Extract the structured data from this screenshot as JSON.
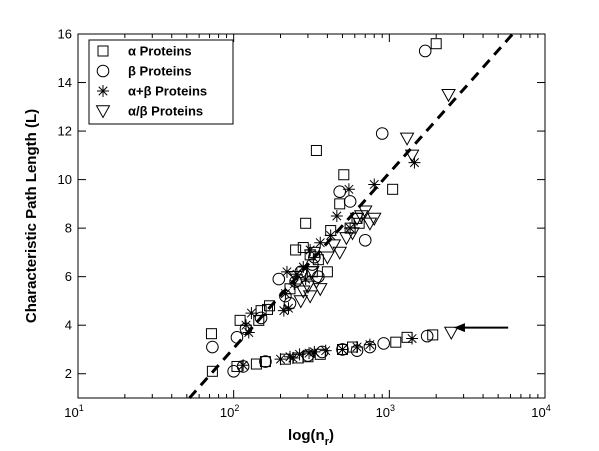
{
  "chart_data": {
    "type": "scatter",
    "title": "",
    "xlabel": "log(n",
    "xlabel_sub": "r",
    "xlabel_close": ")",
    "ylabel": "Characteristic Path Length (L)",
    "xscale": "log",
    "xlim": [
      10,
      10000
    ],
    "ylim": [
      1,
      16
    ],
    "grid": false,
    "legend_position": "top-left",
    "x_ticks": [
      {
        "value": 10,
        "base": "10",
        "exp": "1"
      },
      {
        "value": 100,
        "base": "10",
        "exp": "2"
      },
      {
        "value": 1000,
        "base": "10",
        "exp": "3"
      },
      {
        "value": 10000,
        "base": "10",
        "exp": "4"
      }
    ],
    "y_ticks": [
      {
        "value": 2,
        "label": "2"
      },
      {
        "value": 4,
        "label": "4"
      },
      {
        "value": 6,
        "label": "6"
      },
      {
        "value": 8,
        "label": "8"
      },
      {
        "value": 10,
        "label": "10"
      },
      {
        "value": 12,
        "label": "12"
      },
      {
        "value": 14,
        "label": "14"
      },
      {
        "value": 16,
        "label": "16"
      }
    ],
    "series": [
      {
        "name": "α Proteins",
        "marker": "square",
        "points": [
          [
            72,
            3.65
          ],
          [
            73,
            2.1
          ],
          [
            105,
            2.3
          ],
          [
            110,
            4.2
          ],
          [
            140,
            2.4
          ],
          [
            145,
            4.2
          ],
          [
            150,
            4.6
          ],
          [
            160,
            2.5
          ],
          [
            165,
            4.65
          ],
          [
            170,
            4.8
          ],
          [
            215,
            2.6
          ],
          [
            230,
            5.5
          ],
          [
            250,
            7.1
          ],
          [
            260,
            2.65
          ],
          [
            280,
            7.2
          ],
          [
            290,
            8.2
          ],
          [
            300,
            2.7
          ],
          [
            310,
            6.9
          ],
          [
            320,
            6.2
          ],
          [
            330,
            7.0
          ],
          [
            340,
            11.2
          ],
          [
            350,
            6.7
          ],
          [
            360,
            2.8
          ],
          [
            400,
            6.2
          ],
          [
            420,
            7.9
          ],
          [
            480,
            9.0
          ],
          [
            500,
            3.0
          ],
          [
            510,
            10.2
          ],
          [
            560,
            8.0
          ],
          [
            580,
            3.1
          ],
          [
            620,
            8.4
          ],
          [
            640,
            8.2
          ],
          [
            1050,
            9.6
          ],
          [
            1100,
            3.3
          ],
          [
            1300,
            3.5
          ],
          [
            1900,
            3.6
          ],
          [
            2000,
            15.6
          ]
        ]
      },
      {
        "name": "β Proteins",
        "marker": "circle",
        "points": [
          [
            73,
            3.1
          ],
          [
            100,
            2.1
          ],
          [
            105,
            3.5
          ],
          [
            115,
            2.3
          ],
          [
            120,
            3.85
          ],
          [
            150,
            4.3
          ],
          [
            160,
            2.5
          ],
          [
            195,
            5.9
          ],
          [
            215,
            5.2
          ],
          [
            230,
            4.9
          ],
          [
            250,
            5.8
          ],
          [
            270,
            6.2
          ],
          [
            300,
            2.75
          ],
          [
            320,
            6.5
          ],
          [
            330,
            6.8
          ],
          [
            350,
            6.0
          ],
          [
            370,
            2.9
          ],
          [
            480,
            9.5
          ],
          [
            500,
            3.0
          ],
          [
            560,
            9.1
          ],
          [
            620,
            2.95
          ],
          [
            700,
            7.5
          ],
          [
            750,
            3.1
          ],
          [
            900,
            11.9
          ],
          [
            920,
            3.25
          ],
          [
            1700,
            15.3
          ],
          [
            1750,
            3.55
          ]
        ]
      },
      {
        "name": "α+β Proteins",
        "marker": "asterisk",
        "points": [
          [
            115,
            2.35
          ],
          [
            120,
            4.0
          ],
          [
            125,
            3.7
          ],
          [
            130,
            4.5
          ],
          [
            200,
            2.6
          ],
          [
            210,
            4.6
          ],
          [
            215,
            5.3
          ],
          [
            220,
            6.2
          ],
          [
            225,
            4.7
          ],
          [
            230,
            2.7
          ],
          [
            240,
            2.65
          ],
          [
            245,
            5.7
          ],
          [
            255,
            6.1
          ],
          [
            265,
            2.8
          ],
          [
            280,
            6.4
          ],
          [
            290,
            5.9
          ],
          [
            305,
            2.85
          ],
          [
            310,
            7.1
          ],
          [
            330,
            2.9
          ],
          [
            360,
            7.4
          ],
          [
            390,
            2.95
          ],
          [
            420,
            7.7
          ],
          [
            460,
            8.5
          ],
          [
            500,
            3.0
          ],
          [
            550,
            9.6
          ],
          [
            560,
            8.0
          ],
          [
            620,
            3.1
          ],
          [
            750,
            3.2
          ],
          [
            800,
            9.8
          ],
          [
            1400,
            3.45
          ],
          [
            1450,
            10.7
          ]
        ]
      },
      {
        "name": "α/β Proteins",
        "marker": "triangle-down",
        "points": [
          [
            250,
            6.0
          ],
          [
            270,
            5.0
          ],
          [
            280,
            5.4
          ],
          [
            300,
            5.6
          ],
          [
            310,
            5.2
          ],
          [
            320,
            6.2
          ],
          [
            340,
            5.8
          ],
          [
            360,
            5.5
          ],
          [
            400,
            6.8
          ],
          [
            440,
            7.3
          ],
          [
            480,
            7.0
          ],
          [
            530,
            7.6
          ],
          [
            580,
            7.8
          ],
          [
            620,
            8.4
          ],
          [
            660,
            8.5
          ],
          [
            700,
            8.7
          ],
          [
            750,
            8.2
          ],
          [
            800,
            8.4
          ],
          [
            1300,
            11.7
          ],
          [
            1400,
            11.0
          ],
          [
            2400,
            13.5
          ],
          [
            2500,
            3.7
          ]
        ]
      }
    ],
    "fit_line": {
      "style": "dashed",
      "points": [
        [
          52,
          1.0
        ],
        [
          6200,
          16.0
        ]
      ]
    },
    "annotation": {
      "type": "arrow",
      "direction": "left",
      "tip": [
        2600,
        3.9
      ],
      "tail": [
        5800,
        3.9
      ]
    }
  }
}
